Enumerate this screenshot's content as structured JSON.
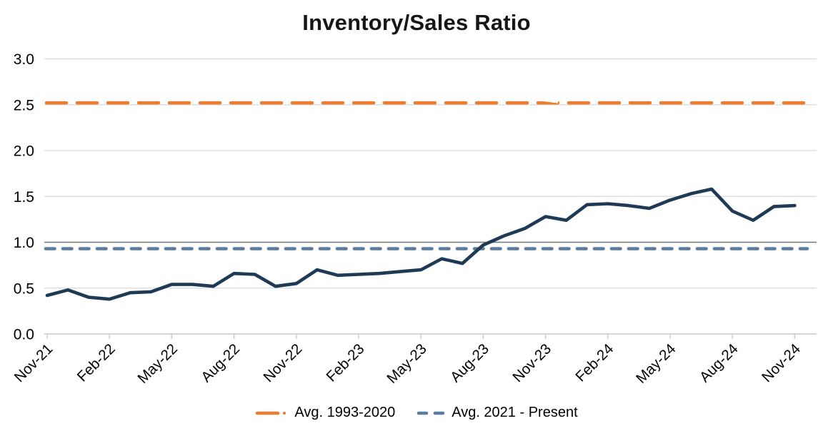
{
  "chart_data": {
    "type": "line",
    "title": "Inventory/Sales Ratio",
    "ylim": [
      0.0,
      3.0
    ],
    "ytick_labels": [
      "0.0",
      "0.5",
      "1.0",
      "1.5",
      "2.0",
      "2.5",
      "3.0"
    ],
    "xtick_labels": [
      "Nov-21",
      "Feb-22",
      "May-22",
      "Aug-22",
      "Nov-22",
      "Feb-23",
      "May-23",
      "Aug-23",
      "Nov-23",
      "Feb-24",
      "May-24",
      "Aug-24",
      "Nov-24"
    ],
    "categories": [
      "Nov-21",
      "Dec-21",
      "Jan-22",
      "Feb-22",
      "Mar-22",
      "Apr-22",
      "May-22",
      "Jun-22",
      "Jul-22",
      "Aug-22",
      "Sep-22",
      "Oct-22",
      "Nov-22",
      "Dec-22",
      "Jan-23",
      "Feb-23",
      "Mar-23",
      "Apr-23",
      "May-23",
      "Jun-23",
      "Jul-23",
      "Aug-23",
      "Sep-23",
      "Oct-23",
      "Nov-23",
      "Dec-23",
      "Jan-24",
      "Feb-24",
      "Mar-24",
      "Apr-24",
      "May-24",
      "Jun-24",
      "Jul-24",
      "Aug-24",
      "Sep-24",
      "Oct-24",
      "Nov-24"
    ],
    "series": [
      {
        "style": "solid",
        "color": "#1E3A55",
        "values": [
          0.42,
          0.48,
          0.4,
          0.38,
          0.45,
          0.46,
          0.54,
          0.54,
          0.52,
          0.66,
          0.65,
          0.52,
          0.55,
          0.7,
          0.64,
          0.65,
          0.66,
          0.68,
          0.7,
          0.82,
          0.77,
          0.97,
          1.07,
          1.15,
          1.28,
          1.24,
          1.41,
          1.42,
          1.4,
          1.37,
          1.46,
          1.53,
          1.58,
          1.34,
          1.24,
          1.39,
          1.4
        ]
      },
      {
        "name": "Avg. 1993-2020",
        "style": "long-dash",
        "color": "#ED7D31",
        "value": 2.52
      },
      {
        "name": "Avg. 2021 - Present",
        "style": "dash",
        "color": "#5B7CA3",
        "value": 0.93
      }
    ],
    "reference_line_value": 1.0,
    "grid": true,
    "gridline_color": "#D9D9D9",
    "reference_line_color": "#717377",
    "axis_color": "#C9C9C9",
    "legend_position": "bottom"
  }
}
